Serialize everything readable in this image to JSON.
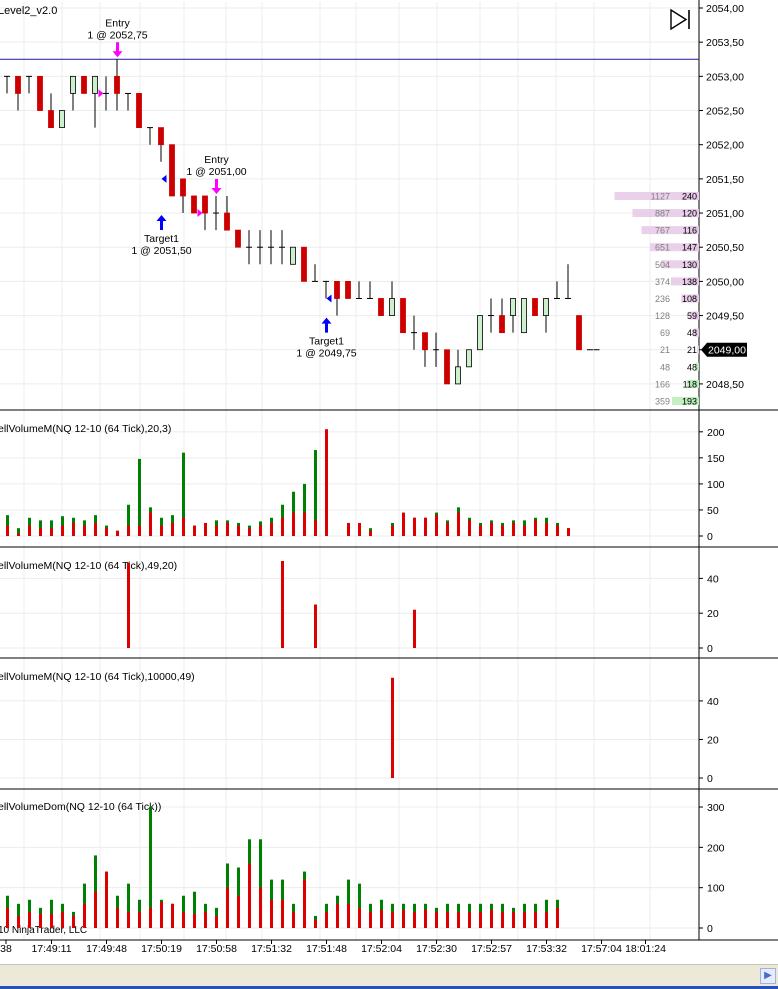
{
  "window": {
    "title": "Level2_v2.0",
    "copyright": "10 NinjaTrader, LLC"
  },
  "colors": {
    "up": "#ccf0cc",
    "down": "#cc0000",
    "hist_up": "#008000",
    "hist_down": "#dd0000",
    "ask": "#e6c8e6",
    "bid": "#b8ecb8",
    "entry_line": "#1a1aa0",
    "entry_arrow": "#ff00ff",
    "target_arrow": "#0000ff",
    "grid": "#ececec"
  },
  "chart_data": [
    {
      "type": "candlestick",
      "title": "Level2_v2.0",
      "ylim": [
        2048.25,
        2054.0
      ],
      "yticks": [
        "2054,00",
        "2053,50",
        "2053,00",
        "2052,50",
        "2052,00",
        "2051,50",
        "2051,00",
        "2050,50",
        "2050,00",
        "2049,50",
        "2049,00",
        "2048,50"
      ],
      "ytick_values": [
        2054.0,
        2053.5,
        2053.0,
        2052.5,
        2052.0,
        2051.5,
        2051.0,
        2050.5,
        2050.0,
        2049.5,
        2049.0,
        2048.5
      ],
      "last_price": "2049,00",
      "last_price_value": 2049.0,
      "entry_line": 2053.25,
      "bars": [
        {
          "o": 2053.0,
          "h": 2053.0,
          "l": 2052.75,
          "c": 2053.0
        },
        {
          "o": 2053.0,
          "h": 2053.0,
          "l": 2052.5,
          "c": 2052.75
        },
        {
          "o": 2053.0,
          "h": 2053.0,
          "l": 2052.75,
          "c": 2053.0
        },
        {
          "o": 2053.0,
          "h": 2053.0,
          "l": 2052.5,
          "c": 2052.5
        },
        {
          "o": 2052.5,
          "h": 2052.75,
          "l": 2052.25,
          "c": 2052.25
        },
        {
          "o": 2052.25,
          "h": 2052.5,
          "l": 2052.25,
          "c": 2052.5
        },
        {
          "o": 2052.75,
          "h": 2053.0,
          "l": 2052.5,
          "c": 2053.0
        },
        {
          "o": 2053.0,
          "h": 2053.0,
          "l": 2052.75,
          "c": 2052.75
        },
        {
          "o": 2052.75,
          "h": 2053.0,
          "l": 2052.25,
          "c": 2053.0
        },
        {
          "o": 2052.75,
          "h": 2053.0,
          "l": 2052.5,
          "c": 2052.75
        },
        {
          "o": 2053.0,
          "h": 2053.25,
          "l": 2052.5,
          "c": 2052.75
        },
        {
          "o": 2052.75,
          "h": 2052.75,
          "l": 2052.5,
          "c": 2052.75
        },
        {
          "o": 2052.75,
          "h": 2052.75,
          "l": 2052.25,
          "c": 2052.25
        },
        {
          "o": 2052.25,
          "h": 2052.25,
          "l": 2052.0,
          "c": 2052.25
        },
        {
          "o": 2052.25,
          "h": 2052.25,
          "l": 2051.75,
          "c": 2052.0
        },
        {
          "o": 2052.0,
          "h": 2052.0,
          "l": 2051.25,
          "c": 2051.25
        },
        {
          "o": 2051.5,
          "h": 2051.5,
          "l": 2051.0,
          "c": 2051.25
        },
        {
          "o": 2051.25,
          "h": 2051.25,
          "l": 2051.0,
          "c": 2051.0
        },
        {
          "o": 2051.25,
          "h": 2051.25,
          "l": 2050.75,
          "c": 2051.0
        },
        {
          "o": 2051.0,
          "h": 2051.25,
          "l": 2050.75,
          "c": 2051.0
        },
        {
          "o": 2051.0,
          "h": 2051.25,
          "l": 2050.75,
          "c": 2050.75
        },
        {
          "o": 2050.75,
          "h": 2050.75,
          "l": 2050.5,
          "c": 2050.5
        },
        {
          "o": 2050.5,
          "h": 2050.75,
          "l": 2050.25,
          "c": 2050.5
        },
        {
          "o": 2050.5,
          "h": 2050.75,
          "l": 2050.25,
          "c": 2050.5
        },
        {
          "o": 2050.5,
          "h": 2050.75,
          "l": 2050.25,
          "c": 2050.5
        },
        {
          "o": 2050.5,
          "h": 2050.75,
          "l": 2050.25,
          "c": 2050.5
        },
        {
          "o": 2050.25,
          "h": 2050.5,
          "l": 2050.25,
          "c": 2050.5
        },
        {
          "o": 2050.5,
          "h": 2050.5,
          "l": 2050.0,
          "c": 2050.0
        },
        {
          "o": 2050.0,
          "h": 2050.25,
          "l": 2050.0,
          "c": 2050.0
        },
        {
          "o": 2050.0,
          "h": 2050.0,
          "l": 2049.75,
          "c": 2050.0
        },
        {
          "o": 2050.0,
          "h": 2050.0,
          "l": 2049.5,
          "c": 2049.75
        },
        {
          "o": 2050.0,
          "h": 2050.0,
          "l": 2049.75,
          "c": 2049.75
        },
        {
          "o": 2049.75,
          "h": 2050.0,
          "l": 2049.75,
          "c": 2049.75
        },
        {
          "o": 2049.75,
          "h": 2050.0,
          "l": 2049.75,
          "c": 2049.75
        },
        {
          "o": 2049.75,
          "h": 2049.75,
          "l": 2049.5,
          "c": 2049.5
        },
        {
          "o": 2049.5,
          "h": 2050.0,
          "l": 2049.5,
          "c": 2049.75
        },
        {
          "o": 2049.75,
          "h": 2049.75,
          "l": 2049.25,
          "c": 2049.25
        },
        {
          "o": 2049.25,
          "h": 2049.5,
          "l": 2049.0,
          "c": 2049.25
        },
        {
          "o": 2049.25,
          "h": 2049.25,
          "l": 2048.75,
          "c": 2049.0
        },
        {
          "o": 2049.0,
          "h": 2049.25,
          "l": 2048.75,
          "c": 2049.0
        },
        {
          "o": 2049.0,
          "h": 2049.0,
          "l": 2048.5,
          "c": 2048.5
        },
        {
          "o": 2048.5,
          "h": 2049.0,
          "l": 2048.5,
          "c": 2048.75
        },
        {
          "o": 2048.75,
          "h": 2049.0,
          "l": 2048.75,
          "c": 2049.0
        },
        {
          "o": 2049.0,
          "h": 2049.5,
          "l": 2049.0,
          "c": 2049.5
        },
        {
          "o": 2049.5,
          "h": 2049.75,
          "l": 2049.25,
          "c": 2049.5
        },
        {
          "o": 2049.5,
          "h": 2049.75,
          "l": 2049.25,
          "c": 2049.25
        },
        {
          "o": 2049.5,
          "h": 2049.75,
          "l": 2049.25,
          "c": 2049.75
        },
        {
          "o": 2049.25,
          "h": 2049.75,
          "l": 2049.25,
          "c": 2049.75
        },
        {
          "o": 2049.75,
          "h": 2049.75,
          "l": 2049.5,
          "c": 2049.5
        },
        {
          "o": 2049.5,
          "h": 2049.75,
          "l": 2049.25,
          "c": 2049.75
        },
        {
          "o": 2049.75,
          "h": 2050.0,
          "l": 2049.75,
          "c": 2049.75
        },
        {
          "o": 2049.75,
          "h": 2050.25,
          "l": 2049.75,
          "c": 2049.75
        },
        {
          "o": 2049.5,
          "h": 2049.5,
          "l": 2049.0,
          "c": 2049.0
        },
        {
          "o": 2049.0,
          "h": 2049.0,
          "l": 2049.0,
          "c": 2049.0
        }
      ],
      "annotations": [
        {
          "bar": 10,
          "kind": "entry",
          "label": "Entry",
          "detail": "1 @ 2052,75",
          "price": 2053.25
        },
        {
          "bar": 19,
          "kind": "entry",
          "label": "Entry",
          "detail": "1 @ 2051,00",
          "price": 2051.25
        },
        {
          "bar": 14,
          "kind": "target",
          "label": "Target1",
          "detail": "1 @ 2051,50",
          "price": 2051.0
        },
        {
          "bar": 29,
          "kind": "target",
          "label": "Target1",
          "detail": "1 @ 2049,75",
          "price": 2049.5
        }
      ],
      "fill_markers": [
        {
          "bar": 9,
          "price": 2052.75,
          "dir": "right",
          "kind": "entry"
        },
        {
          "bar": 14,
          "price": 2051.5,
          "dir": "left",
          "kind": "target"
        },
        {
          "bar": 18,
          "price": 2051.0,
          "dir": "right",
          "kind": "entry"
        },
        {
          "bar": 29,
          "price": 2049.75,
          "dir": "left",
          "kind": "target"
        }
      ],
      "dom_ladder": [
        {
          "price": 2051.25,
          "total": "1127",
          "size": 240,
          "side": "ask"
        },
        {
          "price": 2051.0,
          "total": "887",
          "size": 120,
          "side": "ask"
        },
        {
          "price": 2050.75,
          "total": "767",
          "size": 116,
          "side": "ask"
        },
        {
          "price": 2050.5,
          "total": "651",
          "size": 147,
          "side": "ask"
        },
        {
          "price": 2050.25,
          "total": "504",
          "size": 130,
          "side": "ask"
        },
        {
          "price": 2050.0,
          "total": "374",
          "size": 138,
          "side": "ask"
        },
        {
          "price": 2049.75,
          "total": "236",
          "size": 108,
          "side": "ask"
        },
        {
          "price": 2049.5,
          "total": "128",
          "size": 59,
          "side": "ask"
        },
        {
          "price": 2049.25,
          "total": "69",
          "size": 48,
          "side": "ask"
        },
        {
          "price": 2049.0,
          "total": "21",
          "size": 21,
          "side": "ask"
        },
        {
          "price": 2048.75,
          "total": "48",
          "size": 48,
          "side": "bid"
        },
        {
          "price": 2048.5,
          "total": "166",
          "size": 118,
          "side": "bid"
        },
        {
          "price": 2048.25,
          "total": "359",
          "size": 193,
          "side": "bid"
        }
      ],
      "x_ticks": [
        {
          "label": "38",
          "bar": 0
        },
        {
          "label": "17:49:11",
          "bar": 4
        },
        {
          "label": "17:49:48",
          "bar": 9
        },
        {
          "label": "17:50:19",
          "bar": 14
        },
        {
          "label": "17:50:58",
          "bar": 19
        },
        {
          "label": "17:51:32",
          "bar": 24
        },
        {
          "label": "17:51:48",
          "bar": 29
        },
        {
          "label": "17:52:04",
          "bar": 34
        },
        {
          "label": "17:52:30",
          "bar": 39
        },
        {
          "label": "17:52:57",
          "bar": 44
        },
        {
          "label": "17:53:32",
          "bar": 49
        },
        {
          "label": "17:57:04",
          "bar": 54
        },
        {
          "label": "18:01:24",
          "bar": 58
        }
      ]
    },
    {
      "type": "bar",
      "title": "ellVolumeM(NQ 12-10 (64 Tick),20,3)",
      "ylim": [
        0,
        215
      ],
      "yticks": [
        0,
        50,
        100,
        150,
        200
      ],
      "series": [
        {
          "name": "buy",
          "values": [
            40,
            15,
            35,
            30,
            30,
            38,
            35,
            30,
            40,
            20,
            10,
            60,
            148,
            55,
            35,
            40,
            160,
            20,
            25,
            30,
            30,
            25,
            20,
            28,
            35,
            60,
            85,
            100,
            165,
            0,
            0,
            25,
            0,
            15,
            0,
            25,
            40,
            35,
            35,
            45,
            30,
            55,
            35,
            25,
            30,
            25,
            30,
            30,
            35,
            35,
            25,
            15
          ]
        },
        {
          "name": "sell",
          "values": [
            20,
            5,
            20,
            15,
            15,
            20,
            25,
            20,
            25,
            15,
            10,
            20,
            20,
            45,
            20,
            25,
            35,
            20,
            25,
            20,
            25,
            20,
            15,
            20,
            25,
            35,
            45,
            45,
            30,
            205,
            0,
            25,
            25,
            10,
            0,
            20,
            45,
            35,
            35,
            40,
            25,
            45,
            30,
            20,
            25,
            20,
            25,
            20,
            30,
            25,
            20,
            15
          ]
        }
      ]
    },
    {
      "type": "bar",
      "title": "ellVolumeM(NQ 12-10 (64 Tick),49,20)",
      "ylim": [
        0,
        50
      ],
      "yticks": [
        0,
        20,
        40
      ],
      "series": [
        {
          "name": "sell",
          "values": [
            0,
            0,
            0,
            0,
            0,
            0,
            0,
            0,
            0,
            0,
            0,
            49,
            0,
            0,
            0,
            0,
            0,
            0,
            0,
            0,
            0,
            0,
            0,
            0,
            0,
            50,
            0,
            0,
            25,
            0,
            0,
            0,
            0,
            0,
            0,
            0,
            0,
            22,
            0,
            0,
            0,
            0,
            0,
            0,
            0,
            0,
            0,
            0,
            0,
            0,
            0,
            0
          ]
        }
      ]
    },
    {
      "type": "bar",
      "title": "ellVolumeM(NQ 12-10 (64 Tick),10000,49)",
      "ylim": [
        0,
        55
      ],
      "yticks": [
        0,
        20,
        40
      ],
      "series": [
        {
          "name": "sell",
          "values": [
            0,
            0,
            0,
            0,
            0,
            0,
            0,
            0,
            0,
            0,
            0,
            0,
            0,
            0,
            0,
            0,
            0,
            0,
            0,
            0,
            0,
            0,
            0,
            0,
            0,
            0,
            0,
            0,
            0,
            0,
            0,
            0,
            0,
            0,
            0,
            52,
            0,
            0,
            0,
            0,
            0,
            0,
            0,
            0,
            0,
            0,
            0,
            0,
            0,
            0,
            0,
            0
          ]
        }
      ]
    },
    {
      "type": "bar",
      "title": "ellVolumeDom(NQ 12-10 (64 Tick))",
      "ylim": [
        0,
        310
      ],
      "yticks": [
        0,
        100,
        200,
        300
      ],
      "series": [
        {
          "name": "buy",
          "values": [
            80,
            60,
            70,
            50,
            70,
            60,
            40,
            110,
            180,
            80,
            80,
            110,
            70,
            300,
            70,
            60,
            80,
            90,
            60,
            50,
            160,
            150,
            220,
            220,
            120,
            120,
            60,
            140,
            30,
            60,
            80,
            120,
            110,
            60,
            70,
            60,
            60,
            60,
            60,
            50,
            60,
            60,
            60,
            60,
            60,
            60,
            50,
            60,
            60,
            70,
            70
          ]
        },
        {
          "name": "sell",
          "values": [
            50,
            30,
            40,
            35,
            35,
            40,
            30,
            60,
            90,
            140,
            50,
            40,
            40,
            50,
            65,
            60,
            40,
            35,
            40,
            30,
            100,
            80,
            160,
            100,
            70,
            70,
            40,
            120,
            20,
            40,
            60,
            60,
            50,
            40,
            45,
            40,
            45,
            40,
            45,
            40,
            40,
            40,
            40,
            40,
            45,
            40,
            40,
            40,
            40,
            40,
            50
          ]
        }
      ]
    }
  ]
}
